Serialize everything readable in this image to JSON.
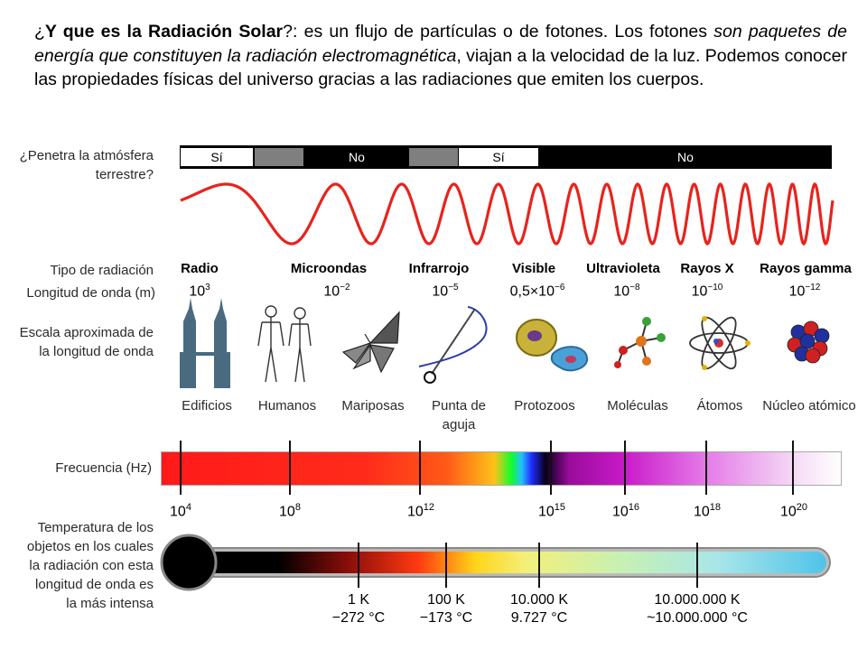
{
  "intro": {
    "q_open": "¿",
    "q_bold": "Y que es la Radiación Solar",
    "q_close": "?: es un flujo de partículas o de fotones. Los fotones ",
    "italic": "son paquetes de energía que constituyen la radiación electromagnética",
    "rest": ", viajan a la velocidad de la luz. Podemos conocer las propiedades físicas del universo gracias a las radiaciones que emiten los cuerpos."
  },
  "row_labels": {
    "atmosphere_1": "¿Penetra la atmósfera",
    "atmosphere_2": "terrestre?",
    "type": "Tipo de radiación",
    "wavelength": "Longitud de onda (m)",
    "scale_1": "Escala aproximada de",
    "scale_2": "la longitud de onda",
    "frequency": "Frecuencia (Hz)",
    "temp_1": "Temperatura de los",
    "temp_2": "objetos en los cuales",
    "temp_3": "la radiación con esta",
    "temp_4": "longitud de onda es",
    "temp_5": "la más intensa"
  },
  "atmosphere": {
    "yes_1": "Sí",
    "no_1": "No",
    "yes_2": "Sí",
    "no_2": "No"
  },
  "radiation_types": [
    {
      "name": "Radio",
      "base": "10",
      "exp": "3",
      "plain": ""
    },
    {
      "name": "Microondas",
      "base": "10",
      "exp": "−2",
      "plain": ""
    },
    {
      "name": "Infrarrojo",
      "base": "10",
      "exp": "−5",
      "plain": ""
    },
    {
      "name": "Visible",
      "base": "0,5×10",
      "exp": "−6",
      "plain": ""
    },
    {
      "name": "Ultravioleta",
      "base": "10",
      "exp": "−8",
      "plain": ""
    },
    {
      "name": "Rayos X",
      "base": "10",
      "exp": "−10",
      "plain": ""
    },
    {
      "name": "Rayos gamma",
      "base": "10",
      "exp": "−12",
      "plain": ""
    }
  ],
  "scale_objects": {
    "o1": "Edificios",
    "o2": "Humanos",
    "o3": "Mariposas",
    "o4a": "Punta de",
    "o4b": "aguja",
    "o5": "Protozoos",
    "o6": "Moléculas",
    "o7": "Átomos",
    "o8": "Núcleo atómico"
  },
  "frequency_ticks": [
    {
      "base": "10",
      "exp": "4"
    },
    {
      "base": "10",
      "exp": "8"
    },
    {
      "base": "10",
      "exp": "12"
    },
    {
      "base": "10",
      "exp": "15"
    },
    {
      "base": "10",
      "exp": "16"
    },
    {
      "base": "10",
      "exp": "18"
    },
    {
      "base": "10",
      "exp": "20"
    }
  ],
  "temperatures": [
    {
      "k": "1 K",
      "c": "−272 °C"
    },
    {
      "k": "100 K",
      "c": "−173 °C"
    },
    {
      "k": "10.000 K",
      "c": "9.727 °C"
    },
    {
      "k": "10.000.000 K",
      "c": "~10.000.000 °C"
    }
  ],
  "colors": {
    "wave": "#e8231c",
    "dark_bar": "#000000",
    "gray_segment": "#7f7f7f"
  }
}
